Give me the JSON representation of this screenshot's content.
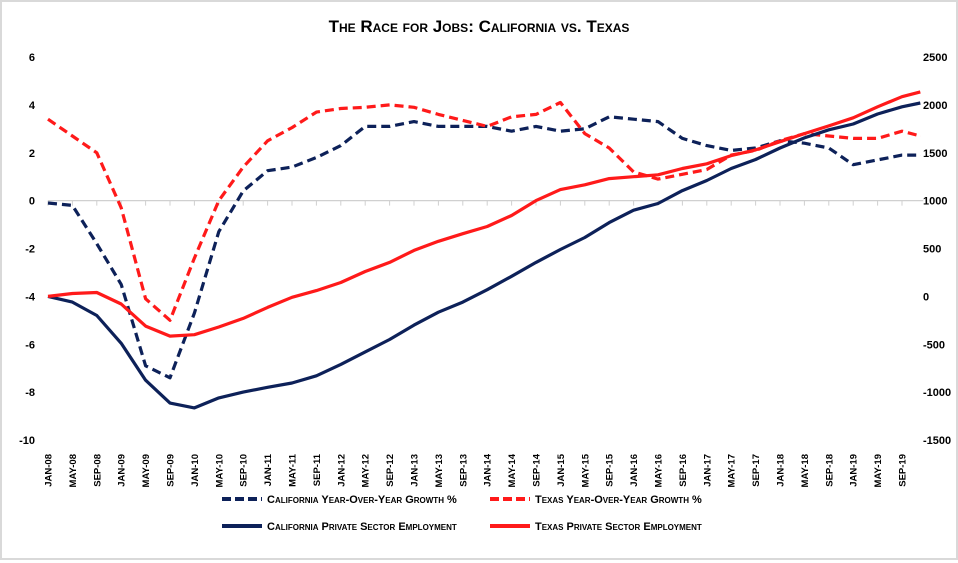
{
  "chart_data": {
    "type": "line",
    "title": "The Race for Jobs: California vs. Texas",
    "xlabel": "",
    "ylabel_left": "",
    "ylabel_right": "",
    "ylim_left": [
      -10,
      6
    ],
    "ylim_right": [
      -1500,
      2500
    ],
    "yticks_left": [
      "6",
      "4",
      "2",
      "0",
      "-2",
      "-4",
      "-6",
      "-8",
      "-10"
    ],
    "yticks_right": [
      "2500",
      "2000",
      "1500",
      "1000",
      "500",
      "0",
      "-500",
      "-1000",
      "-1500"
    ],
    "x_months_from_jan08": [
      0,
      4,
      8,
      12,
      16,
      20,
      24,
      28,
      32,
      36,
      40,
      44,
      48,
      52,
      56,
      60,
      64,
      68,
      72,
      76,
      80,
      84,
      88,
      92,
      96,
      100,
      104,
      108,
      112,
      116,
      120,
      124,
      128,
      132,
      136,
      140,
      143
    ],
    "x_tick_labels": [
      "JAN-08",
      "MAY-08",
      "SEP-08",
      "JAN-09",
      "MAY-09",
      "SEP-09",
      "JAN-10",
      "MAY-10",
      "SEP-10",
      "JAN-11",
      "MAY-11",
      "SEP-11",
      "JAN-12",
      "MAY-12",
      "SEP-12",
      "JAN-13",
      "MAY-13",
      "SEP-13",
      "JAN-14",
      "MAY-14",
      "SEP-14",
      "JAN-15",
      "MAY-15",
      "SEP-15",
      "JAN-16",
      "MAY-16",
      "SEP-16",
      "JAN-17",
      "MAY-17",
      "SEP-17",
      "JAN-18",
      "MAY-18",
      "SEP-18",
      "JAN-19",
      "MAY-19",
      "SEP-19"
    ],
    "grid": false,
    "legend_position": "bottom",
    "series": [
      {
        "name": "California Year-Over-Year Growth %",
        "axis": "left",
        "style": "dashed",
        "color": "#0d2159",
        "values": [
          -0.1,
          -0.2,
          -1.8,
          -3.5,
          -6.9,
          -7.4,
          -4.7,
          -1.3,
          0.4,
          1.25,
          1.4,
          1.8,
          2.3,
          3.1,
          3.1,
          3.3,
          3.1,
          3.1,
          3.1,
          2.9,
          3.1,
          2.9,
          3.0,
          3.5,
          3.4,
          3.3,
          2.6,
          2.3,
          2.1,
          2.2,
          2.5,
          2.4,
          2.2,
          1.5,
          1.7,
          1.9,
          1.9
        ]
      },
      {
        "name": "Texas Year-Over-Year Growth %",
        "axis": "left",
        "style": "dashed",
        "color": "#ff1a1a",
        "values": [
          3.4,
          2.7,
          2.0,
          -0.3,
          -4.1,
          -5.0,
          -2.4,
          0.0,
          1.4,
          2.5,
          3.05,
          3.7,
          3.85,
          3.9,
          4.0,
          3.9,
          3.6,
          3.35,
          3.1,
          3.5,
          3.6,
          4.1,
          2.8,
          2.2,
          1.2,
          0.9,
          1.1,
          1.3,
          1.9,
          2.1,
          2.5,
          2.8,
          2.7,
          2.6,
          2.6,
          2.9,
          2.7
        ]
      },
      {
        "name": "California Private Sector Employment",
        "axis": "right",
        "style": "solid",
        "color": "#0d2159",
        "values": [
          0,
          -60,
          -200,
          -490,
          -875,
          -1115,
          -1165,
          -1060,
          -1000,
          -950,
          -905,
          -830,
          -710,
          -580,
          -450,
          -300,
          -165,
          -60,
          70,
          210,
          355,
          490,
          615,
          770,
          900,
          970,
          1105,
          1210,
          1335,
          1430,
          1550,
          1655,
          1740,
          1800,
          1905,
          1980,
          2020
        ]
      },
      {
        "name": "Texas Private Sector Employment",
        "axis": "right",
        "style": "solid",
        "color": "#ff1a1a",
        "values": [
          0,
          30,
          40,
          -80,
          -310,
          -415,
          -400,
          -320,
          -230,
          -115,
          -10,
          60,
          145,
          260,
          355,
          480,
          575,
          655,
          730,
          845,
          1000,
          1115,
          1165,
          1230,
          1250,
          1270,
          1335,
          1385,
          1470,
          1530,
          1615,
          1700,
          1780,
          1865,
          1980,
          2085,
          2135
        ]
      }
    ]
  }
}
